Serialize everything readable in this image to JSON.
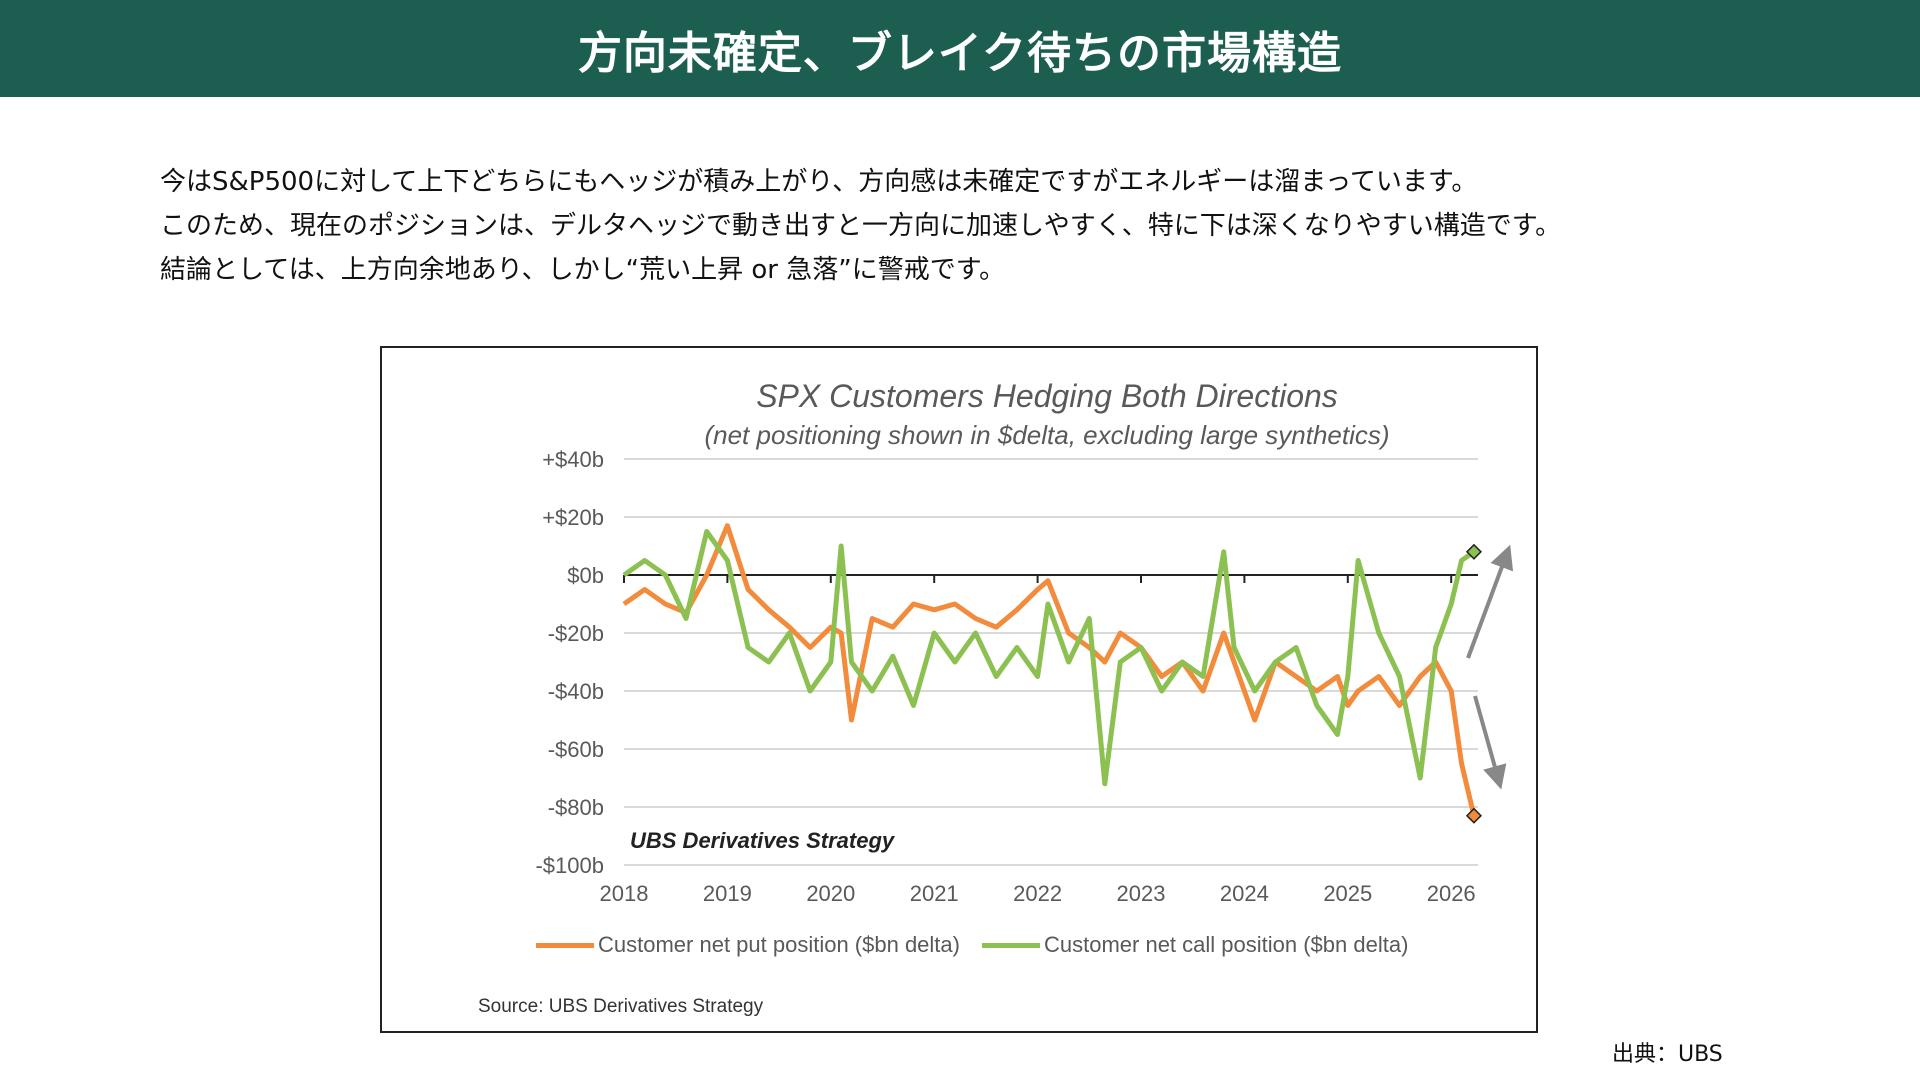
{
  "header": {
    "title": "方向未確定、ブレイク待ちの市場構造"
  },
  "body": {
    "lines": [
      "今はS&P500に対して上下どちらにもヘッジが積み上がり、方向感は未確定ですがエネルギーは溜まっています。",
      "このため、現在のポジションは、デルタヘッジで動き出すと一方向に加速しやすく、特に下は深くなりやすい構造です。",
      "結論としては、上方向余地あり、しかし“荒い上昇 or 急落”に警戒です。"
    ]
  },
  "credit": "出典：UBS",
  "chart_data": {
    "type": "line",
    "title": "SPX Customers Hedging Both Directions",
    "subtitle": "(net positioning shown in $delta, excluding large synthetics)",
    "brand_label": "UBS Derivatives Strategy",
    "source": "Source: UBS Derivatives Strategy",
    "xlabel": "",
    "ylabel": "",
    "xlim": [
      2018,
      2026.3
    ],
    "ylim": [
      -100,
      40
    ],
    "yticks": [
      40,
      20,
      0,
      -20,
      -40,
      -60,
      -80,
      -100
    ],
    "ytick_labels": [
      "+$40b",
      "+$20b",
      "$0b",
      "-$20b",
      "-$40b",
      "-$60b",
      "-$80b",
      "-$100b"
    ],
    "xticks": [
      2018,
      2019,
      2020,
      2021,
      2022,
      2023,
      2024,
      2025,
      2026
    ],
    "xtick_labels": [
      "2018",
      "2019",
      "2020",
      "2021",
      "2022",
      "2023",
      "2024",
      "2025",
      "2026"
    ],
    "grid": true,
    "legend": "bottom",
    "series": [
      {
        "name": "Customer net put position ($bn delta)",
        "color": "#f28c3c",
        "x": [
          2018.0,
          2018.2,
          2018.4,
          2018.6,
          2018.8,
          2019.0,
          2019.2,
          2019.4,
          2019.6,
          2019.8,
          2020.0,
          2020.1,
          2020.2,
          2020.4,
          2020.6,
          2020.8,
          2021.0,
          2021.2,
          2021.4,
          2021.6,
          2021.8,
          2022.0,
          2022.1,
          2022.3,
          2022.5,
          2022.65,
          2022.8,
          2023.0,
          2023.2,
          2023.4,
          2023.6,
          2023.8,
          2023.9,
          2024.1,
          2024.3,
          2024.5,
          2024.7,
          2024.9,
          2025.0,
          2025.1,
          2025.3,
          2025.5,
          2025.7,
          2025.85,
          2026.0,
          2026.1,
          2026.22
        ],
        "y": [
          -10,
          -5,
          -10,
          -13,
          0,
          17,
          -5,
          -12,
          -18,
          -25,
          -18,
          -20,
          -50,
          -15,
          -18,
          -10,
          -12,
          -10,
          -15,
          -18,
          -12,
          -5,
          -2,
          -20,
          -25,
          -30,
          -20,
          -25,
          -35,
          -30,
          -40,
          -20,
          -30,
          -50,
          -30,
          -35,
          -40,
          -35,
          -45,
          -40,
          -35,
          -45,
          -35,
          -30,
          -40,
          -65,
          -83
        ]
      },
      {
        "name": "Customer net call position ($bn delta)",
        "color": "#8cc152",
        "x": [
          2018.0,
          2018.2,
          2018.4,
          2018.6,
          2018.8,
          2019.0,
          2019.2,
          2019.4,
          2019.6,
          2019.8,
          2020.0,
          2020.1,
          2020.2,
          2020.4,
          2020.6,
          2020.8,
          2021.0,
          2021.2,
          2021.4,
          2021.6,
          2021.8,
          2022.0,
          2022.1,
          2022.3,
          2022.5,
          2022.65,
          2022.8,
          2023.0,
          2023.2,
          2023.4,
          2023.6,
          2023.8,
          2023.9,
          2024.1,
          2024.3,
          2024.5,
          2024.7,
          2024.9,
          2025.0,
          2025.1,
          2025.3,
          2025.5,
          2025.7,
          2025.85,
          2026.0,
          2026.1,
          2026.22
        ],
        "y": [
          0,
          5,
          0,
          -15,
          15,
          5,
          -25,
          -30,
          -20,
          -40,
          -30,
          10,
          -30,
          -40,
          -28,
          -45,
          -20,
          -30,
          -20,
          -35,
          -25,
          -35,
          -10,
          -30,
          -15,
          -72,
          -30,
          -25,
          -40,
          -30,
          -35,
          8,
          -25,
          -40,
          -30,
          -25,
          -45,
          -55,
          -35,
          5,
          -20,
          -35,
          -70,
          -25,
          -10,
          5,
          8
        ]
      }
    ]
  }
}
